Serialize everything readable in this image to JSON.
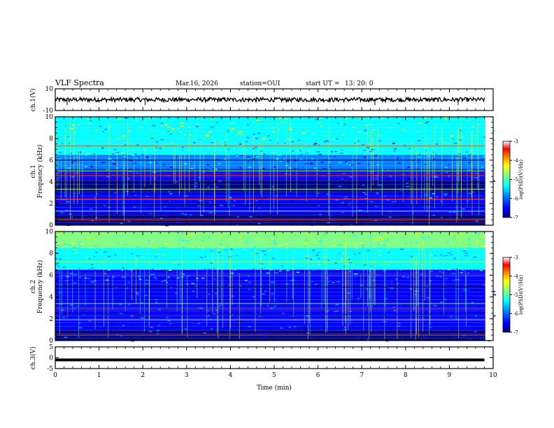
{
  "chart_data": {
    "type": "heatmap",
    "title": "VLF Spectra",
    "date": "Mar.16, 2026",
    "station": "station=OUI",
    "start_label": "start  UT  =",
    "start_time": "13: 20: 0",
    "xlabel": "Time  (min)",
    "xlim": [
      0,
      10
    ],
    "xticks": [
      "0",
      "1",
      "2",
      "3",
      "4",
      "5",
      "6",
      "7",
      "8",
      "9",
      "10"
    ],
    "waveform_top": {
      "ylabel": "ch.1(V)",
      "ylim": [
        -10,
        10
      ],
      "yticks": [
        "10",
        "-10"
      ],
      "baseline": 0,
      "amplitude": 2
    },
    "spectrogram_1": {
      "ylabel_line1": "ch.1",
      "ylabel_line2": "Frequency  (kHz)",
      "ylim": [
        0,
        10
      ],
      "yticks": [
        "0",
        "2",
        "4",
        "6",
        "8",
        "10"
      ],
      "bands": [
        {
          "from": 0,
          "to": 1.0,
          "level": -6.6
        },
        {
          "from": 1.0,
          "to": 2.2,
          "level": -6.5
        },
        {
          "from": 2.2,
          "to": 3.0,
          "level": -6.3
        },
        {
          "from": 3.0,
          "to": 4.2,
          "level": -6.7
        },
        {
          "from": 4.2,
          "to": 5.2,
          "level": -6.4
        },
        {
          "from": 5.2,
          "to": 6.5,
          "level": -6.0
        },
        {
          "from": 6.5,
          "to": 8.0,
          "level": -5.5
        },
        {
          "from": 8.0,
          "to": 10,
          "level": -5.1
        }
      ],
      "lines_khz": [
        0.5,
        1.3,
        1.9,
        2.4,
        3.3,
        4.0,
        4.6,
        5.0,
        6.0,
        7.3
      ]
    },
    "spectrogram_2": {
      "ylabel_line1": "ch.2",
      "ylabel_line2": "Frequency  (kHz)",
      "ylim": [
        0,
        10
      ],
      "yticks": [
        "0",
        "2",
        "4",
        "6",
        "8",
        "10"
      ],
      "bands": [
        {
          "from": 0,
          "to": 1.0,
          "level": -6.7
        },
        {
          "from": 1.0,
          "to": 2.2,
          "level": -6.5
        },
        {
          "from": 2.2,
          "to": 3.2,
          "level": -6.5
        },
        {
          "from": 3.2,
          "to": 5.2,
          "level": -6.5
        },
        {
          "from": 5.2,
          "to": 6.5,
          "level": -6.1
        },
        {
          "from": 6.5,
          "to": 8.5,
          "level": -5.4
        },
        {
          "from": 8.5,
          "to": 10,
          "level": -4.9
        }
      ],
      "lines_khz": [
        0.5,
        1.9,
        2.4,
        2.9,
        3.4,
        4.9,
        6.0,
        7.2
      ]
    },
    "waveform_bottom": {
      "ylabel": "ch.3(V)",
      "ylim": [
        -5,
        5
      ],
      "yticks": [
        "5",
        "0",
        "-5"
      ],
      "baseline": -1
    },
    "colorbar": {
      "label": "log(PSD)(V²/Hz)",
      "range": [
        -7,
        -3
      ],
      "ticks": [
        "-3",
        "-4",
        "-5",
        "-6",
        "-7"
      ],
      "colors": [
        "#000080",
        "#0000ff",
        "#0080ff",
        "#00ffff",
        "#80ff80",
        "#ffff00",
        "#ff8000",
        "#ff0000",
        "#ffffff"
      ]
    }
  }
}
